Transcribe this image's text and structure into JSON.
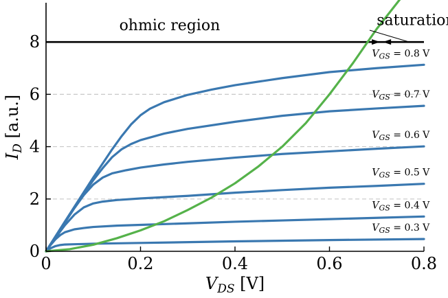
{
  "chart_data": {
    "type": "line",
    "xlabel": {
      "main": "V",
      "sub": "DS",
      "unit": " [V]"
    },
    "ylabel": {
      "main": "I",
      "sub": "D",
      "unit": " [a.u.]"
    },
    "xlim": [
      0,
      0.8
    ],
    "ylim": [
      0,
      9.5
    ],
    "xticks": [
      0,
      0.2,
      0.4,
      0.6,
      0.8
    ],
    "xtick_labels": [
      "0",
      "0.2",
      "0.4",
      "0.6",
      "0.8"
    ],
    "yticks": [
      0,
      2,
      4,
      6,
      8
    ],
    "ytick_labels": [
      "0",
      "2",
      "4",
      "6",
      "8"
    ],
    "grid": {
      "horizontal_dashed_at": [
        2,
        4,
        6
      ]
    },
    "colors": {
      "curves": "#3a78b0",
      "boundary": "#55b24a",
      "reference_line": "#000000",
      "grid": "#c8c8c8"
    },
    "reference_line": {
      "y": 8
    },
    "annotations": [
      {
        "text": "ohmic region",
        "x": 0.155,
        "y": 8.45
      },
      {
        "text": "saturation",
        "x": 0.7,
        "y": 8.65
      }
    ],
    "series": [
      {
        "vgs": "0.3",
        "label_prefix": "V",
        "label_sub": "GS",
        "label_suffix": " = 0.3 V",
        "x": [
          0,
          0.01,
          0.02,
          0.03,
          0.04,
          0.06,
          0.1,
          0.2,
          0.4,
          0.6,
          0.8
        ],
        "y": [
          0,
          0.12,
          0.2,
          0.24,
          0.26,
          0.27,
          0.29,
          0.32,
          0.38,
          0.43,
          0.47
        ]
      },
      {
        "vgs": "0.4",
        "label_prefix": "V",
        "label_sub": "GS",
        "label_suffix": " = 0.4 V",
        "x": [
          0,
          0.01,
          0.02,
          0.03,
          0.04,
          0.06,
          0.08,
          0.1,
          0.15,
          0.2,
          0.3,
          0.4,
          0.5,
          0.6,
          0.7,
          0.8
        ],
        "y": [
          0,
          0.25,
          0.46,
          0.62,
          0.73,
          0.84,
          0.89,
          0.93,
          0.98,
          1.01,
          1.07,
          1.13,
          1.18,
          1.23,
          1.28,
          1.33
        ]
      },
      {
        "vgs": "0.5",
        "label_prefix": "V",
        "label_sub": "GS",
        "label_suffix": " = 0.5 V",
        "x": [
          0,
          0.02,
          0.04,
          0.06,
          0.08,
          0.1,
          0.12,
          0.15,
          0.2,
          0.3,
          0.4,
          0.5,
          0.6,
          0.7,
          0.8
        ],
        "y": [
          0,
          0.52,
          1.0,
          1.4,
          1.68,
          1.83,
          1.9,
          1.96,
          2.02,
          2.12,
          2.24,
          2.34,
          2.43,
          2.5,
          2.58
        ]
      },
      {
        "vgs": "0.6",
        "label_prefix": "V",
        "label_sub": "GS",
        "label_suffix": " = 0.6 V",
        "x": [
          0,
          0.02,
          0.04,
          0.06,
          0.08,
          0.1,
          0.12,
          0.14,
          0.17,
          0.2,
          0.25,
          0.3,
          0.4,
          0.5,
          0.6,
          0.7,
          0.8
        ],
        "y": [
          0,
          0.55,
          1.1,
          1.65,
          2.15,
          2.55,
          2.82,
          2.98,
          3.1,
          3.2,
          3.32,
          3.42,
          3.58,
          3.72,
          3.82,
          3.92,
          4.01
        ]
      },
      {
        "vgs": "0.7",
        "label_prefix": "V",
        "label_sub": "GS",
        "label_suffix": " = 0.7 V",
        "x": [
          0,
          0.02,
          0.04,
          0.06,
          0.08,
          0.1,
          0.12,
          0.14,
          0.16,
          0.18,
          0.2,
          0.25,
          0.3,
          0.4,
          0.5,
          0.6,
          0.7,
          0.8
        ],
        "y": [
          0,
          0.56,
          1.12,
          1.68,
          2.2,
          2.72,
          3.18,
          3.6,
          3.9,
          4.1,
          4.25,
          4.5,
          4.68,
          4.95,
          5.18,
          5.35,
          5.46,
          5.56
        ]
      },
      {
        "vgs": "0.8",
        "label_prefix": "V",
        "label_sub": "GS",
        "label_suffix": " = 0.8 V",
        "x": [
          0,
          0.02,
          0.04,
          0.06,
          0.08,
          0.1,
          0.12,
          0.14,
          0.16,
          0.18,
          0.2,
          0.22,
          0.25,
          0.3,
          0.35,
          0.4,
          0.5,
          0.6,
          0.7,
          0.8
        ],
        "y": [
          0,
          0.57,
          1.14,
          1.7,
          2.26,
          2.82,
          3.36,
          3.9,
          4.4,
          4.85,
          5.2,
          5.45,
          5.7,
          5.98,
          6.18,
          6.35,
          6.62,
          6.85,
          7.0,
          7.13
        ]
      },
      {
        "vgs": "boundary",
        "x": [
          0,
          0.05,
          0.1,
          0.15,
          0.2,
          0.25,
          0.3,
          0.35,
          0.4,
          0.45,
          0.5,
          0.55,
          0.6,
          0.65,
          0.7,
          0.75
        ],
        "y": [
          0,
          0.08,
          0.25,
          0.5,
          0.8,
          1.15,
          1.58,
          2.05,
          2.6,
          3.25,
          4.0,
          4.9,
          6.0,
          7.2,
          8.5,
          9.65
        ]
      }
    ]
  }
}
